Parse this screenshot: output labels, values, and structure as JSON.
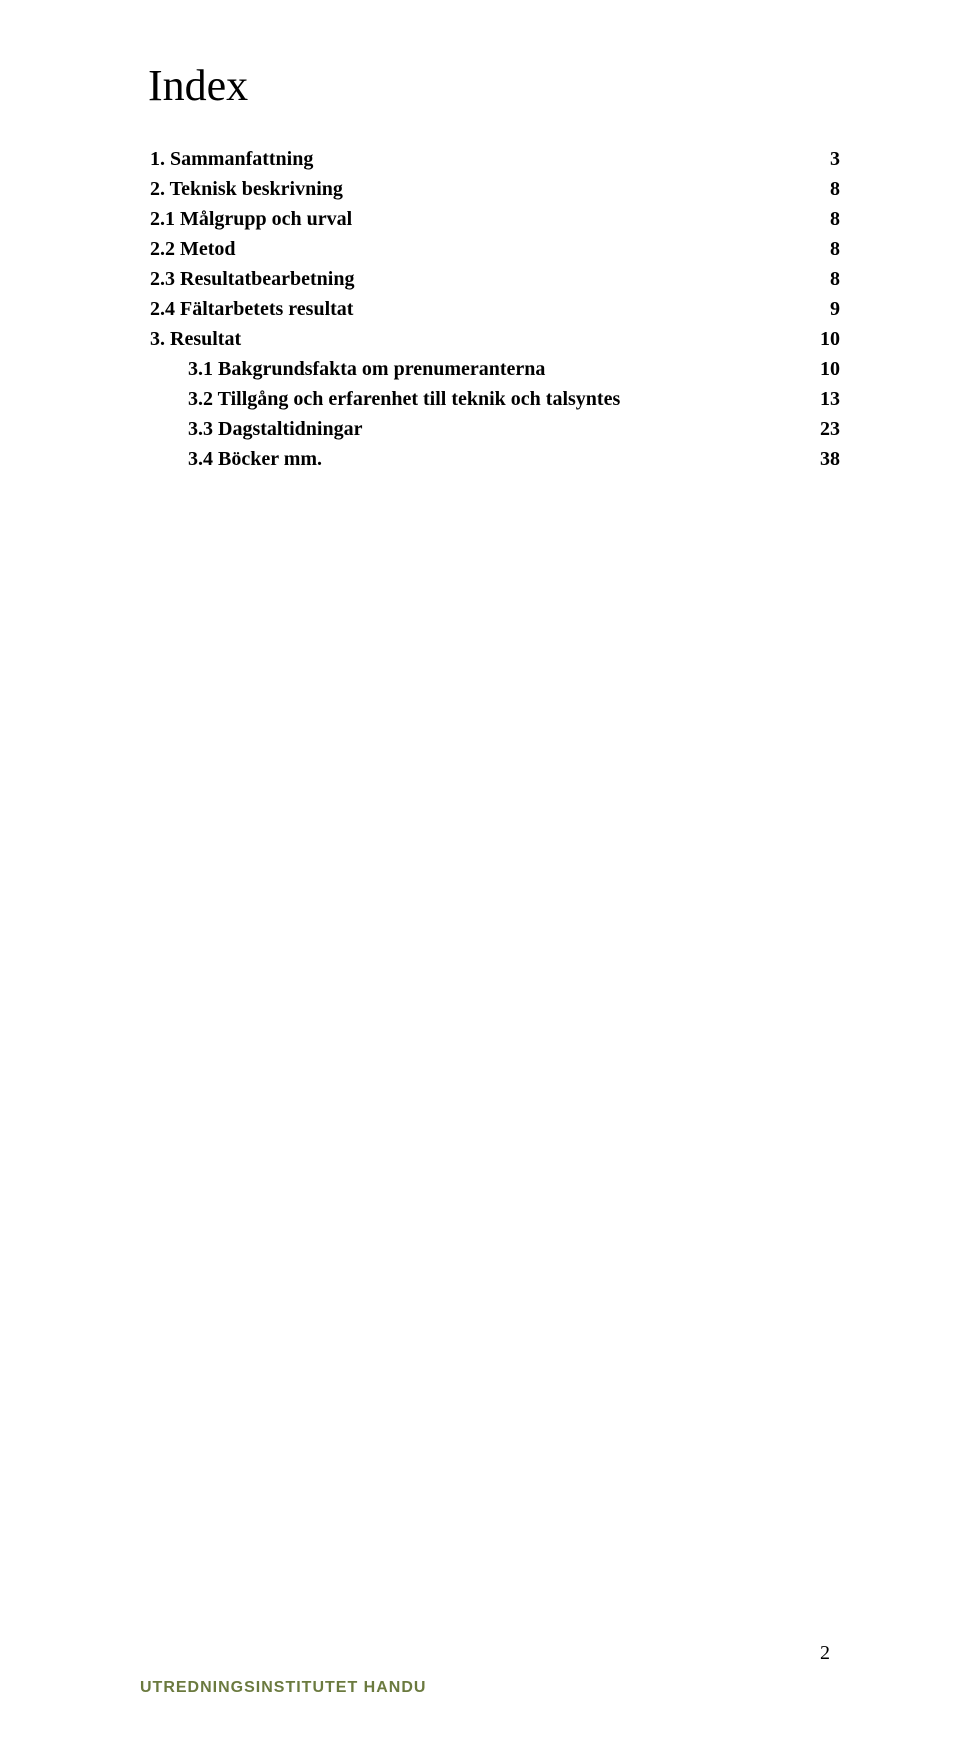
{
  "heading": "Index",
  "toc": [
    {
      "label": "1. Sammanfattning",
      "page": "3",
      "bold": true,
      "indent": 0
    },
    {
      "label": "2. Teknisk beskrivning",
      "page": "8",
      "bold": true,
      "indent": 0
    },
    {
      "label": "2.1 Målgrupp och urval",
      "page": "8",
      "bold": true,
      "indent": 0
    },
    {
      "label": "2.2 Metod",
      "page": "8",
      "bold": true,
      "indent": 0
    },
    {
      "label": "2.3 Resultatbearbetning",
      "page": "8",
      "bold": true,
      "indent": 0
    },
    {
      "label": "2.4 Fältarbetets resultat",
      "page": "9",
      "bold": true,
      "indent": 0
    },
    {
      "label": "3. Resultat",
      "page": "10",
      "bold": true,
      "indent": 0
    },
    {
      "label": "3.1 Bakgrundsfakta om prenumeranterna",
      "page": "10",
      "bold": true,
      "indent": 1
    },
    {
      "label": "3.2 Tillgång och erfarenhet till teknik och talsyntes",
      "page": "13",
      "bold": true,
      "indent": 1
    },
    {
      "label": "3.3 Dagstaltidningar",
      "page": "23",
      "bold": true,
      "indent": 1
    },
    {
      "label": "3.4 Böcker mm.",
      "page": "38",
      "bold": true,
      "indent": 1
    }
  ],
  "footer_text": "UTREDNINGSINSTITUTET HANDU",
  "page_number": "2",
  "colors": {
    "text": "#000000",
    "footer": "#6b7a3f",
    "background": "#ffffff"
  },
  "typography": {
    "heading_size_pt": 33,
    "body_size_pt": 15,
    "footer_size_pt": 12
  }
}
